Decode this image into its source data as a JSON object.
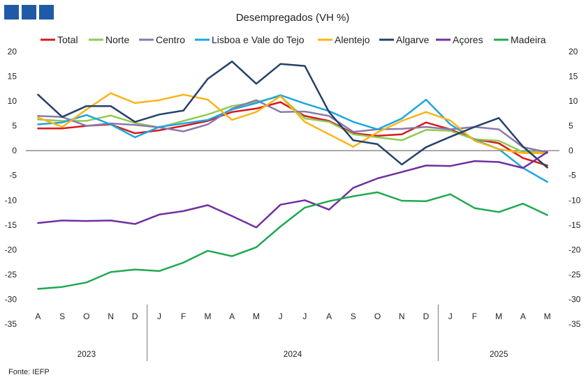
{
  "chart_data": {
    "type": "line",
    "title": "Desempregados  (VH %)",
    "source": "Fonte: IEFP",
    "x": [
      "A",
      "S",
      "O",
      "N",
      "D",
      "J",
      "F",
      "M",
      "A",
      "M",
      "J",
      "J",
      "A",
      "S",
      "O",
      "N",
      "D",
      "J",
      "F",
      "M",
      "A",
      "M"
    ],
    "year_groups": [
      {
        "label": "2023",
        "start": 0,
        "end": 4
      },
      {
        "label": "2024",
        "start": 5,
        "end": 16
      },
      {
        "label": "2025",
        "start": 17,
        "end": 21
      }
    ],
    "ylim": [
      -35,
      20
    ],
    "yticks": [
      20,
      15,
      10,
      5,
      0,
      -5,
      -10,
      -15,
      -20,
      -25,
      -30,
      -35
    ],
    "grid": false,
    "legend_position": "top",
    "series": [
      {
        "name": "Total",
        "color": "#d7191c",
        "values": [
          4.5,
          4.5,
          5.0,
          5.3,
          3.5,
          4.1,
          5.0,
          6.0,
          7.8,
          8.5,
          9.8,
          7.0,
          6.0,
          3.5,
          3.0,
          3.3,
          5.7,
          4.3,
          2.3,
          1.5,
          -1.5,
          -3.0
        ]
      },
      {
        "name": "Norte",
        "color": "#92c952",
        "values": [
          6.3,
          6.0,
          6.0,
          7.1,
          5.6,
          4.7,
          6.0,
          7.3,
          9.0,
          9.8,
          11.0,
          6.5,
          5.8,
          3.3,
          2.7,
          2.1,
          4.2,
          4.0,
          2.3,
          2.0,
          -0.3,
          -0.3
        ]
      },
      {
        "name": "Centro",
        "color": "#8b79ac",
        "values": [
          7.0,
          6.8,
          5.0,
          5.5,
          5.2,
          4.7,
          3.9,
          5.3,
          8.5,
          10.2,
          7.8,
          7.9,
          7.0,
          3.8,
          4.3,
          4.4,
          4.8,
          4.3,
          4.8,
          4.3,
          0.7,
          -0.3
        ]
      },
      {
        "name": "Lisboa e Vale do Tejo",
        "color": "#1ba7e1",
        "values": [
          5.3,
          5.7,
          7.2,
          5.3,
          2.7,
          4.8,
          5.5,
          6.2,
          8.3,
          9.6,
          11.2,
          9.5,
          8.0,
          5.8,
          4.3,
          6.5,
          10.3,
          5.3,
          2.2,
          0.3,
          -3.5,
          -6.3
        ]
      },
      {
        "name": "Alentejo",
        "color": "#fbb416",
        "values": [
          6.7,
          4.8,
          8.3,
          11.6,
          9.6,
          10.2,
          11.3,
          10.3,
          6.2,
          7.8,
          11.0,
          5.8,
          3.3,
          0.8,
          3.7,
          6.0,
          7.8,
          6.1,
          2.0,
          0.3,
          -0.5,
          -0.5
        ]
      },
      {
        "name": "Algarve",
        "color": "#25406a",
        "values": [
          11.3,
          6.8,
          9.0,
          9.0,
          5.8,
          7.3,
          8.1,
          14.5,
          18.0,
          13.5,
          17.5,
          17.1,
          7.8,
          2.1,
          1.3,
          -2.8,
          0.7,
          2.8,
          4.8,
          6.6,
          0.8,
          -3.4
        ]
      },
      {
        "name": "Açores",
        "color": "#7030a0",
        "values": [
          -14.6,
          -14.1,
          -14.2,
          -14.1,
          -14.8,
          -12.9,
          -12.2,
          -11.0,
          -13.2,
          -15.5,
          -10.9,
          -10.0,
          -11.9,
          -7.5,
          -5.6,
          -4.3,
          -3.0,
          -3.1,
          -2.1,
          -2.3,
          -3.5,
          -0.3
        ]
      },
      {
        "name": "Madeira",
        "color": "#20a851",
        "values": [
          -27.9,
          -27.5,
          -26.6,
          -24.5,
          -24.0,
          -24.3,
          -22.6,
          -20.2,
          -21.3,
          -19.5,
          -15.3,
          -11.5,
          -10.2,
          -9.2,
          -8.4,
          -10.1,
          -10.2,
          -8.8,
          -11.6,
          -12.4,
          -10.7,
          -13.0
        ]
      }
    ]
  }
}
